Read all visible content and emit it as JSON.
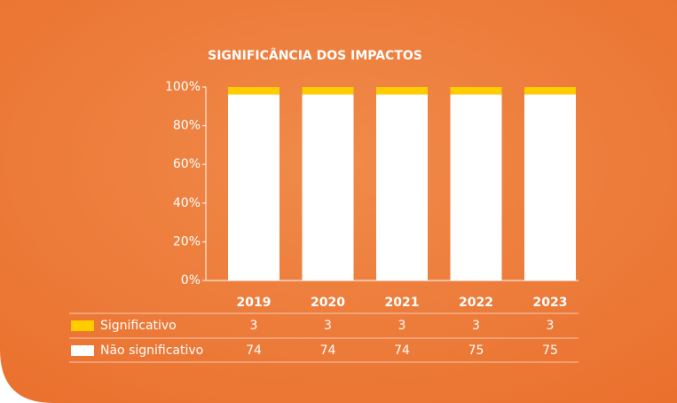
{
  "chart_data": {
    "type": "bar",
    "stacking": "percent",
    "title": "SIGNIFICÂNCIA DOS IMPACTOS",
    "categories": [
      "2019",
      "2020",
      "2021",
      "2022",
      "2023"
    ],
    "series": [
      {
        "name": "Significativo",
        "color": "#ffcc00",
        "values": [
          3,
          3,
          3,
          3,
          3
        ]
      },
      {
        "name": "Não significativo",
        "color": "#ffffff",
        "values": [
          74,
          74,
          74,
          75,
          75
        ]
      }
    ],
    "ylim": [
      0,
      100
    ],
    "yticks": [
      {
        "value": 0,
        "label": "0%"
      },
      {
        "value": 20,
        "label": "20%"
      },
      {
        "value": 40,
        "label": "40%"
      },
      {
        "value": 60,
        "label": "60%"
      },
      {
        "value": 80,
        "label": "80%"
      },
      {
        "value": 100,
        "label": "100%"
      }
    ],
    "grid": false
  }
}
